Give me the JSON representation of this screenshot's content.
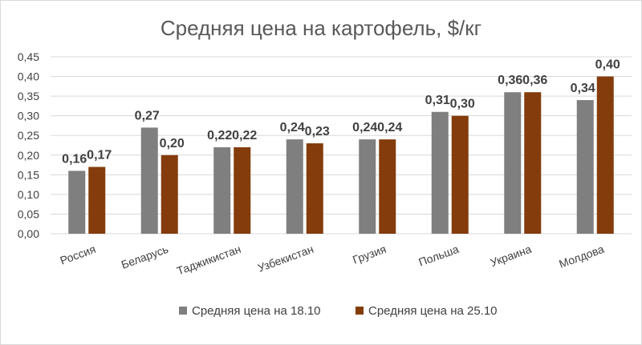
{
  "chart_data": {
    "type": "bar",
    "title": "Средняя цена на картофель, $/кг",
    "categories": [
      "Россия",
      "Беларусь",
      "Таджикистан",
      "Узбекистан",
      "Грузия",
      "Польша",
      "Украина",
      "Молдова"
    ],
    "series": [
      {
        "name": "Средняя цена на 18.10",
        "color": "#7f7f7f",
        "values": [
          0.16,
          0.27,
          0.22,
          0.24,
          0.24,
          0.31,
          0.36,
          0.34
        ],
        "labels": [
          "0,16",
          "0,27",
          "0,22",
          "0,24",
          "0,24",
          "0,31",
          "0,36",
          "0,34"
        ]
      },
      {
        "name": "Средняя цена на 25.10",
        "color": "#843c0c",
        "values": [
          0.17,
          0.2,
          0.22,
          0.23,
          0.24,
          0.3,
          0.36,
          0.4
        ],
        "labels": [
          "0,17",
          "0,20",
          "0,22",
          "0,23",
          "0,24",
          "0,30",
          "0,36",
          "0,40"
        ]
      }
    ],
    "ylim": [
      0,
      0.45
    ],
    "yticks": [
      0,
      0.05,
      0.1,
      0.15,
      0.2,
      0.25,
      0.3,
      0.35,
      0.4,
      0.45
    ],
    "ytick_labels": [
      "0,00",
      "0,05",
      "0,10",
      "0,15",
      "0,20",
      "0,25",
      "0,30",
      "0,35",
      "0,40",
      "0,45"
    ],
    "grid": true,
    "legend_position": "bottom"
  }
}
